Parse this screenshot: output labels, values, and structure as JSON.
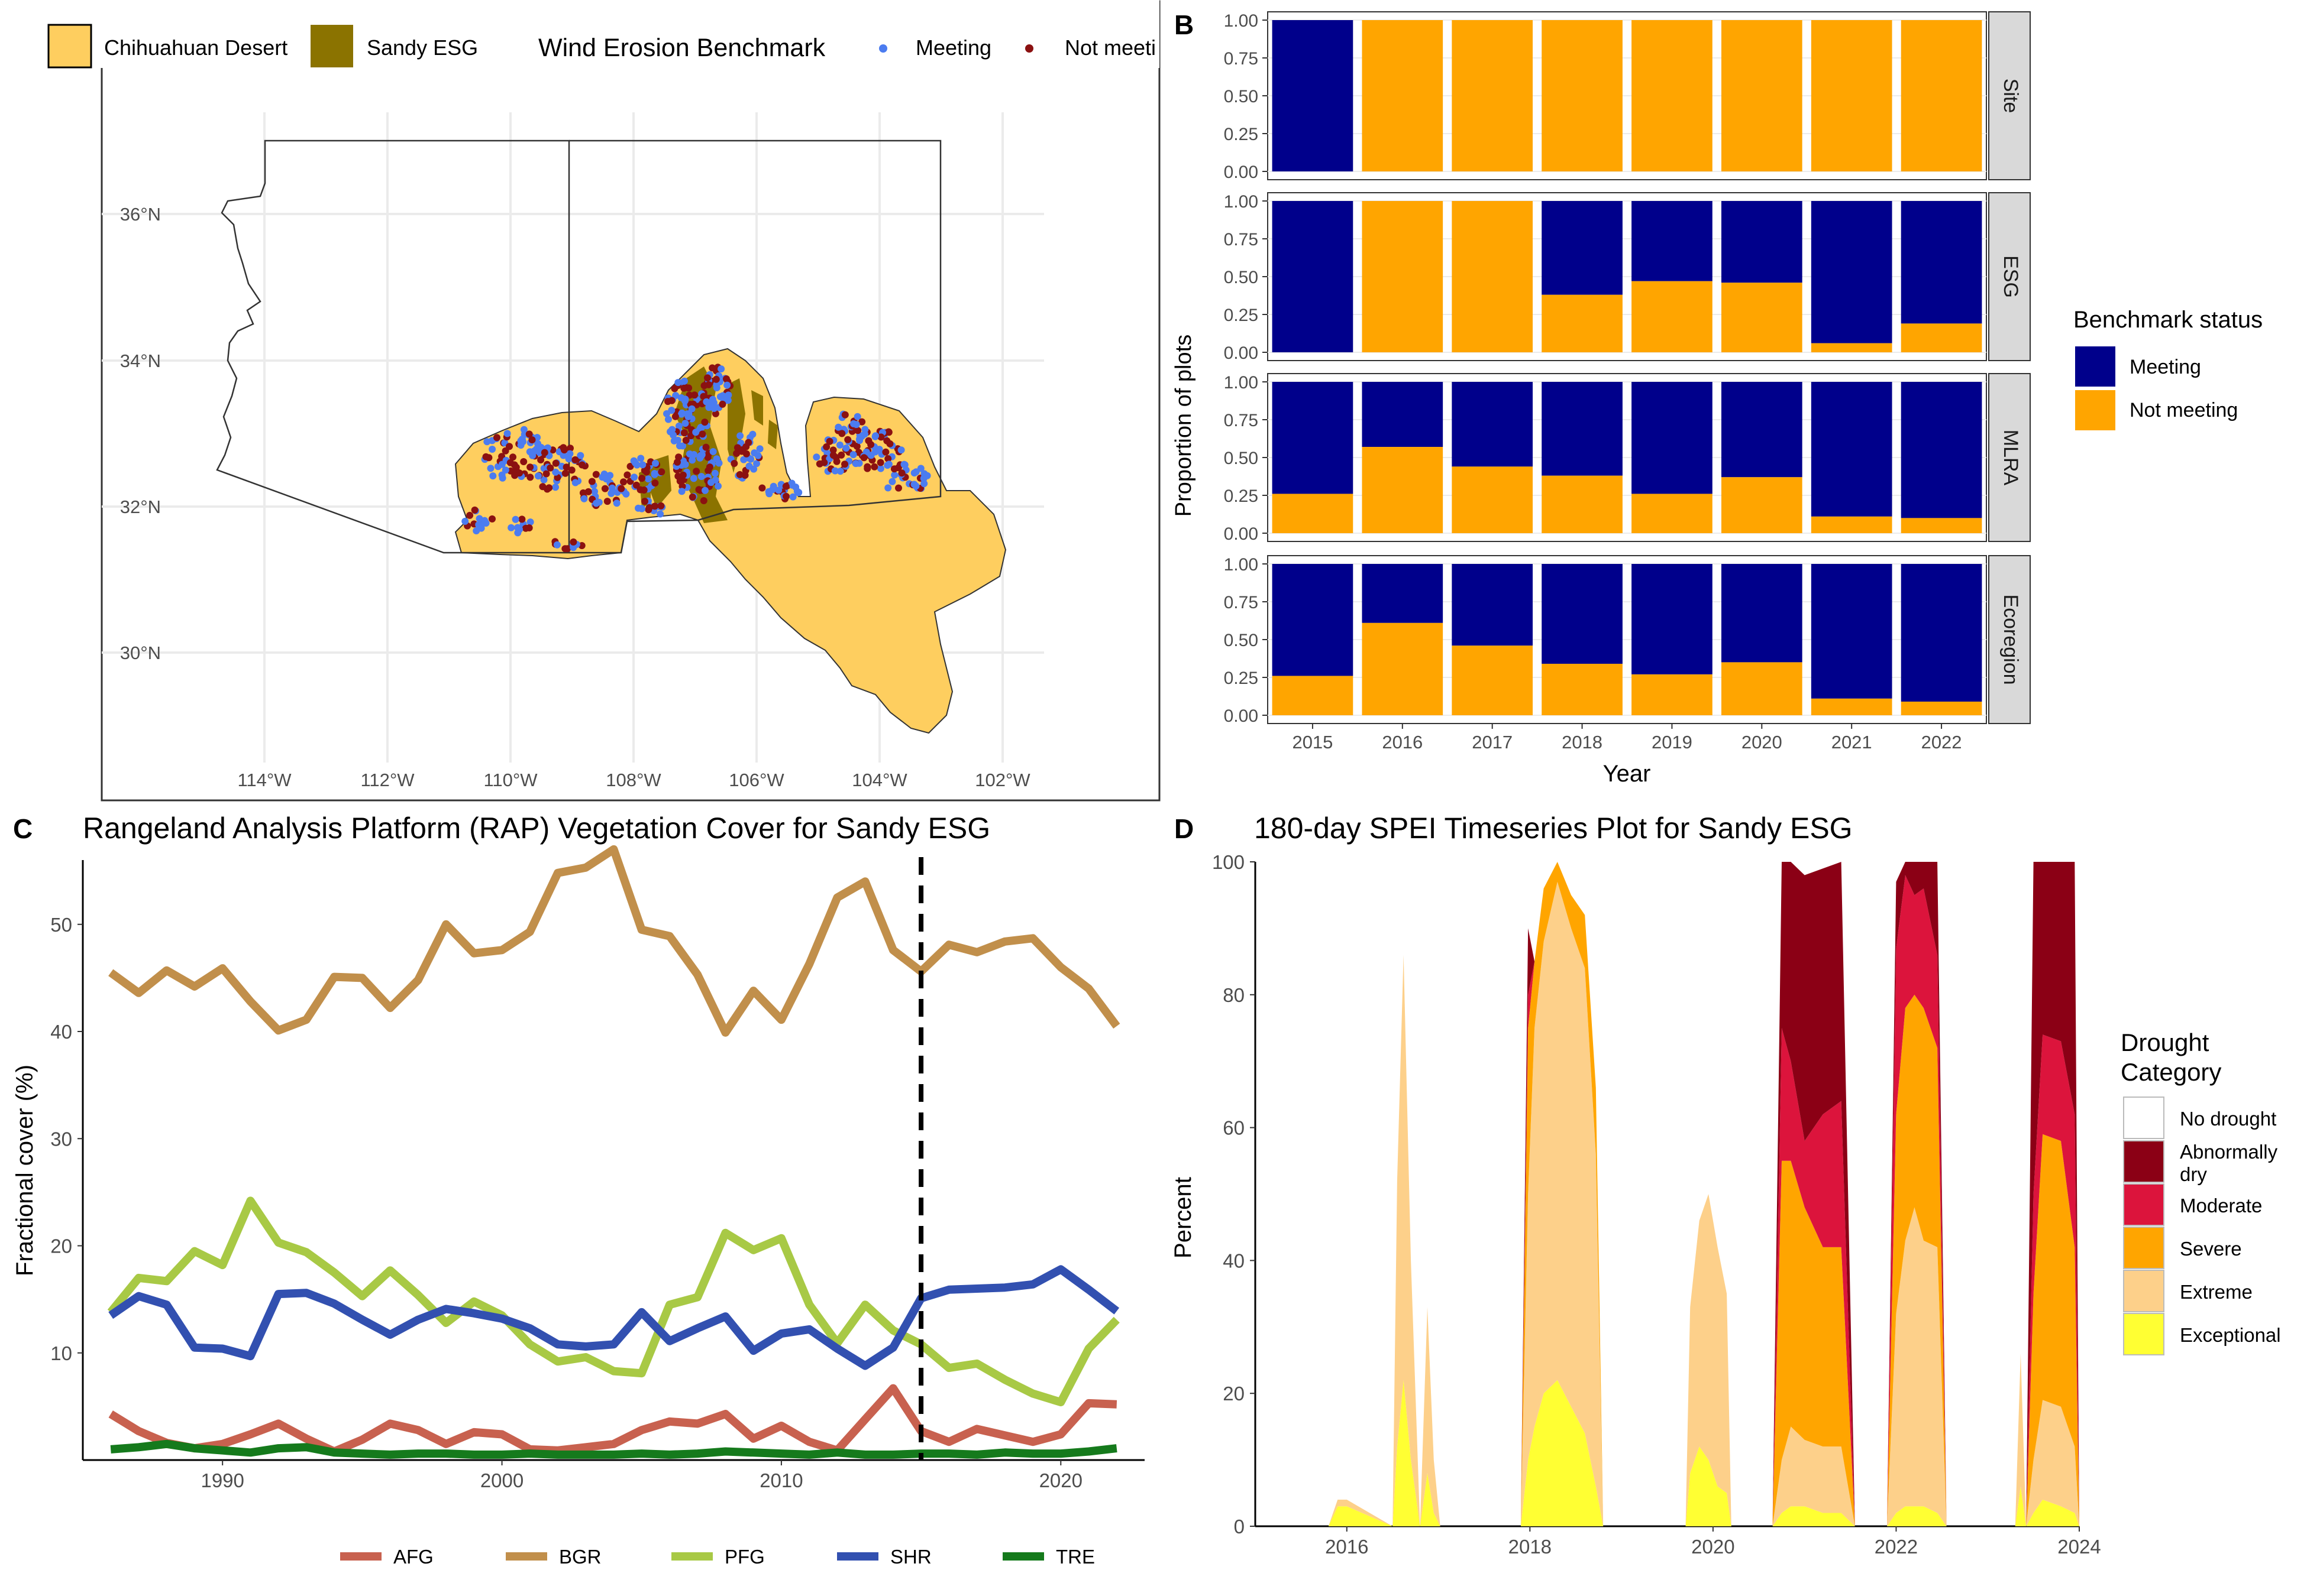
{
  "panel_labels": {
    "a": "A",
    "b": "B",
    "c": "C",
    "d": "D"
  },
  "colors": {
    "desert": "#fece5f",
    "sandy": "#8b7300",
    "meeting_pt": "#4b7cf0",
    "notmeeting_pt": "#8b1111",
    "navy": "#00008b",
    "orange": "#ffa500",
    "strip": "#d9d9d9",
    "AFG": "#c8614f",
    "BGR": "#c18f4b",
    "PFG": "#a8c945",
    "SHR": "#3250b0",
    "TRE": "#157a1c",
    "drought_abn": "#8b0015",
    "drought_mod": "#dc143c",
    "drought_sev": "#ffa500",
    "drought_ext": "#fdd08a",
    "drought_exc": "#ffff33"
  },
  "map": {
    "legend": {
      "desert_label": "Chihuahuan Desert",
      "sandy_label": "Sandy ESG",
      "benchmark_title": "Wind Erosion Benchmark",
      "meeting_label": "Meeting",
      "notmeeting_label": "Not meeti"
    },
    "lat_ticks": [
      "36°N",
      "34°N",
      "32°N",
      "30°N"
    ],
    "lon_ticks": [
      "114°W",
      "112°W",
      "110°W",
      "108°W",
      "106°W",
      "104°W",
      "102°W"
    ]
  },
  "chart_data": [
    {
      "type": "bar",
      "panel": "B",
      "stacked": true,
      "categories": [
        "2015",
        "2016",
        "2017",
        "2018",
        "2019",
        "2020",
        "2021",
        "2022"
      ],
      "xlabel": "Year",
      "ylabel": "Proportion of plots",
      "ylim": [
        0,
        1
      ],
      "yticks": [
        "0.00",
        "0.25",
        "0.50",
        "0.75",
        "1.00"
      ],
      "legend_title": "Benchmark status",
      "legend": [
        "Meeting",
        "Not meeting"
      ],
      "facets": [
        {
          "name": "Site",
          "not_meeting": [
            0,
            1,
            1,
            1,
            1,
            1,
            1,
            1
          ]
        },
        {
          "name": "ESG",
          "not_meeting": [
            0,
            1,
            1,
            0.38,
            0.47,
            0.46,
            0.06,
            0.19
          ]
        },
        {
          "name": "MLRA",
          "not_meeting": [
            0.26,
            0.57,
            0.44,
            0.38,
            0.26,
            0.37,
            0.11,
            0.1
          ]
        },
        {
          "name": "Ecoregion",
          "not_meeting": [
            0.26,
            0.61,
            0.46,
            0.34,
            0.27,
            0.35,
            0.11,
            0.09
          ]
        }
      ]
    },
    {
      "type": "line",
      "panel": "C",
      "title": "Rangeland Analysis Platform (RAP) Vegetation Cover for Sandy ESG",
      "ylabel": "Fractional cover (%)",
      "xlim": [
        1985,
        2023
      ],
      "ylim": [
        0,
        56
      ],
      "xticks": [
        1990,
        2000,
        2010,
        2020
      ],
      "yticks": [
        10,
        20,
        30,
        40,
        50
      ],
      "vline": 2015,
      "x": [
        1986,
        1987,
        1988,
        1989,
        1990,
        1991,
        1992,
        1993,
        1994,
        1995,
        1996,
        1997,
        1998,
        1999,
        2000,
        2001,
        2002,
        2003,
        2004,
        2005,
        2006,
        2007,
        2008,
        2009,
        2010,
        2011,
        2012,
        2013,
        2014,
        2015,
        2016,
        2017,
        2018,
        2019,
        2020,
        2021,
        2022
      ],
      "series": [
        {
          "name": "AFG",
          "values": [
            4.3,
            2.7,
            1.6,
            1.1,
            1.5,
            2.4,
            3.4,
            2,
            0.8,
            1.9,
            3.4,
            2.8,
            1.5,
            2.6,
            2.4,
            1,
            0.9,
            1.2,
            1.5,
            2.8,
            3.6,
            3.4,
            4.3,
            2,
            3.2,
            1.7,
            0.9,
            3.8,
            6.7,
            2.7,
            1.7,
            2.9,
            2.3,
            1.7,
            2.4,
            5.3,
            5.2
          ]
        },
        {
          "name": "BGR",
          "values": [
            45.5,
            43.6,
            45.7,
            44.2,
            45.9,
            42.8,
            40.1,
            41.1,
            45.1,
            45,
            42.2,
            44.8,
            50,
            47.3,
            47.6,
            49.3,
            54.8,
            55.3,
            57,
            49.5,
            48.9,
            45.3,
            39.9,
            43.8,
            41.1,
            46.3,
            52.5,
            54,
            47.6,
            45.6,
            48.1,
            47.4,
            48.4,
            48.7,
            46,
            44,
            40.5
          ]
        },
        {
          "name": "PFG",
          "values": [
            13.8,
            17,
            16.7,
            19.5,
            18.2,
            24.2,
            20.3,
            19.4,
            17.5,
            15.3,
            17.7,
            15.4,
            12.8,
            14.8,
            13.5,
            10.8,
            9.2,
            9.6,
            8.3,
            8.1,
            14.5,
            15.2,
            21.2,
            19.6,
            20.7,
            14.5,
            10.9,
            14.5,
            12.1,
            10.8,
            8.6,
            9,
            7.5,
            6.2,
            5.4,
            10.4,
            13.1
          ]
        },
        {
          "name": "SHR",
          "values": [
            13.5,
            15.3,
            14.5,
            10.5,
            10.4,
            9.7,
            15.5,
            15.6,
            14.6,
            13.1,
            11.7,
            13.1,
            14.1,
            13.7,
            13.2,
            12.3,
            10.8,
            10.6,
            10.8,
            13.8,
            11.1,
            12.3,
            13.4,
            10.2,
            11.8,
            12.2,
            10.4,
            8.8,
            10.5,
            15.1,
            15.9,
            16,
            16.1,
            16.4,
            17.8,
            15.9,
            13.9
          ]
        },
        {
          "name": "TRE",
          "values": [
            1,
            1.2,
            1.5,
            1.1,
            0.9,
            0.7,
            1.1,
            1.2,
            0.7,
            0.6,
            0.5,
            0.6,
            0.6,
            0.5,
            0.5,
            0.6,
            0.5,
            0.5,
            0.5,
            0.6,
            0.5,
            0.6,
            0.8,
            0.7,
            0.6,
            0.5,
            0.7,
            0.5,
            0.5,
            0.6,
            0.6,
            0.5,
            0.7,
            0.6,
            0.6,
            0.8,
            1.1
          ]
        }
      ]
    },
    {
      "type": "area",
      "panel": "D",
      "title": "180-day SPEI Timeseries Plot for Sandy ESG",
      "ylabel": "Percent",
      "xlim": [
        2015,
        2024
      ],
      "ylim": [
        0,
        100
      ],
      "xticks": [
        2016,
        2018,
        2020,
        2022,
        2024
      ],
      "yticks": [
        0,
        20,
        40,
        60,
        80,
        100
      ],
      "legend_title": "Drought Category",
      "legend": [
        "No drought",
        "Abnormally dry",
        "Moderate",
        "Severe",
        "Extreme",
        "Exceptional"
      ],
      "series_key": [
        "exc",
        "ext",
        "sev",
        "mod",
        "abn"
      ],
      "x": [
        2015.8,
        2015.9,
        2016.0,
        2016.5,
        2016.55,
        2016.62,
        2016.7,
        2016.8,
        2016.88,
        2016.95,
        2017.02,
        2017.3,
        2017.9,
        2017.98,
        2018.05,
        2018.15,
        2018.3,
        2018.45,
        2018.6,
        2018.72,
        2018.8,
        2018.9,
        2019.7,
        2019.75,
        2019.85,
        2019.95,
        2020.05,
        2020.15,
        2020.2,
        2020.4,
        2020.65,
        2020.75,
        2020.85,
        2021.0,
        2021.2,
        2021.4,
        2021.55,
        2021.62,
        2021.8,
        2021.9,
        2022.0,
        2022.1,
        2022.2,
        2022.3,
        2022.45,
        2022.55,
        2022.8,
        2023.3,
        2023.36,
        2023.42,
        2023.5,
        2023.6,
        2023.8,
        2023.95,
        2024.0
      ],
      "values": [
        [
          0,
          3,
          3,
          0,
          12,
          22,
          10,
          0,
          8,
          2,
          0,
          0,
          0,
          10,
          15,
          20,
          22,
          18,
          14,
          6,
          0,
          0,
          0,
          8,
          12,
          10,
          6,
          5,
          0,
          0,
          0,
          2,
          3,
          3,
          2,
          2,
          0,
          0,
          0,
          0,
          2,
          3,
          3,
          3,
          2,
          0,
          0,
          0,
          6,
          0,
          2,
          4,
          3,
          2,
          0
        ],
        [
          0,
          1,
          1,
          0,
          40,
          64,
          30,
          0,
          25,
          8,
          0,
          0,
          0,
          40,
          60,
          68,
          75,
          72,
          70,
          50,
          0,
          0,
          0,
          25,
          34,
          40,
          36,
          30,
          0,
          0,
          0,
          8,
          12,
          10,
          10,
          10,
          0,
          0,
          0,
          0,
          30,
          40,
          45,
          40,
          40,
          0,
          0,
          0,
          20,
          0,
          8,
          15,
          15,
          10,
          0
        ],
        [
          0,
          0,
          0,
          0,
          0,
          0,
          0,
          0,
          0,
          0,
          0,
          0,
          0,
          25,
          10,
          8,
          5,
          5,
          8,
          10,
          0,
          0,
          0,
          0,
          0,
          0,
          0,
          0,
          0,
          0,
          0,
          45,
          40,
          35,
          30,
          30,
          0,
          0,
          0,
          0,
          30,
          35,
          32,
          35,
          30,
          0,
          0,
          0,
          0,
          0,
          25,
          40,
          40,
          30,
          0
        ],
        [
          0,
          0,
          0,
          0,
          0,
          0,
          0,
          0,
          0,
          0,
          0,
          0,
          0,
          5,
          0,
          0,
          0,
          0,
          0,
          0,
          0,
          0,
          0,
          0,
          0,
          0,
          0,
          0,
          0,
          0,
          0,
          20,
          15,
          10,
          20,
          22,
          0,
          0,
          0,
          0,
          25,
          20,
          15,
          18,
          14,
          0,
          0,
          0,
          0,
          0,
          15,
          15,
          15,
          20,
          0
        ],
        [
          0,
          0,
          0,
          0,
          0,
          0,
          0,
          0,
          0,
          0,
          0,
          0,
          0,
          10,
          0,
          0,
          0,
          0,
          0,
          0,
          0,
          0,
          0,
          0,
          0,
          0,
          0,
          0,
          0,
          0,
          0,
          25,
          30,
          40,
          37,
          36,
          0,
          0,
          0,
          0,
          10,
          2,
          5,
          4,
          14,
          0,
          0,
          0,
          0,
          0,
          50,
          26,
          27,
          38,
          0
        ]
      ]
    }
  ]
}
